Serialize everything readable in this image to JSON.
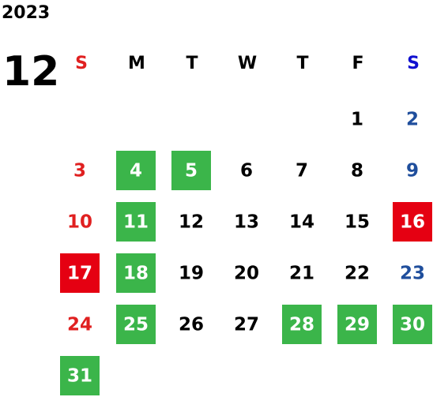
{
  "header": {
    "year": "2023",
    "month": "12"
  },
  "weekdays": [
    "S",
    "M",
    "T",
    "W",
    "T",
    "F",
    "S"
  ],
  "weekday_colors": [
    "#e02020",
    "#000000",
    "#000000",
    "#000000",
    "#000000",
    "#000000",
    "#1010d0"
  ],
  "day_colors": [
    "#e02020",
    "#000000",
    "#000000",
    "#000000",
    "#000000",
    "#000000",
    "#1f4e9c"
  ],
  "highlight_colors": {
    "green": "#3bb54a",
    "red": "#e50012"
  },
  "highlight_text_color": "#ffffff",
  "weeks": [
    [
      null,
      null,
      null,
      null,
      null,
      {
        "day": "1"
      },
      {
        "day": "2"
      }
    ],
    [
      {
        "day": "3"
      },
      {
        "day": "4",
        "highlight": "green"
      },
      {
        "day": "5",
        "highlight": "green"
      },
      {
        "day": "6"
      },
      {
        "day": "7"
      },
      {
        "day": "8"
      },
      {
        "day": "9"
      }
    ],
    [
      {
        "day": "10"
      },
      {
        "day": "11",
        "highlight": "green"
      },
      {
        "day": "12"
      },
      {
        "day": "13"
      },
      {
        "day": "14"
      },
      {
        "day": "15"
      },
      {
        "day": "16",
        "highlight": "red"
      }
    ],
    [
      {
        "day": "17",
        "highlight": "red"
      },
      {
        "day": "18",
        "highlight": "green"
      },
      {
        "day": "19"
      },
      {
        "day": "20"
      },
      {
        "day": "21"
      },
      {
        "day": "22"
      },
      {
        "day": "23"
      }
    ],
    [
      {
        "day": "24"
      },
      {
        "day": "25",
        "highlight": "green"
      },
      {
        "day": "26"
      },
      {
        "day": "27"
      },
      {
        "day": "28",
        "highlight": "green"
      },
      {
        "day": "29",
        "highlight": "green"
      },
      {
        "day": "30",
        "highlight": "green"
      }
    ],
    [
      {
        "day": "31",
        "highlight": "green"
      },
      null,
      null,
      null,
      null,
      null,
      null
    ]
  ]
}
